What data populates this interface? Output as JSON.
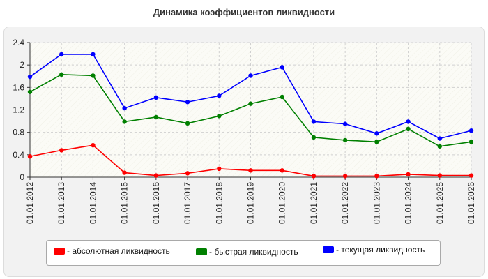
{
  "chart_data": {
    "type": "line",
    "title": "Динамика коэффициентов ликвидности",
    "xlabel": "",
    "ylabel": "",
    "categories": [
      "01.01.2012",
      "01.01.2013",
      "01.01.2014",
      "01.01.2015",
      "01.01.2016",
      "01.01.2017",
      "01.01.2018",
      "01.01.2019",
      "01.01.2020",
      "01.01.2021",
      "01.01.2022",
      "01.01.2023",
      "01.01.2024",
      "01.01.2025",
      "01.01.2026"
    ],
    "ylim": [
      0,
      2.4
    ],
    "yticks": [
      "0",
      "0.4",
      "0.8",
      "1.2",
      "1.6",
      "2",
      "2.4"
    ],
    "grid": true,
    "legend_position": "bottom",
    "series": [
      {
        "name": "- абсолютная ликвидность",
        "color": "#ff0000",
        "values": [
          0.37,
          0.48,
          0.57,
          0.08,
          0.03,
          0.07,
          0.15,
          0.12,
          0.12,
          0.02,
          0.02,
          0.02,
          0.05,
          0.03,
          0.03
        ]
      },
      {
        "name": "- быстрая ликвидность",
        "color": "#008000",
        "values": [
          1.52,
          1.83,
          1.81,
          0.99,
          1.07,
          0.96,
          1.09,
          1.31,
          1.43,
          0.71,
          0.66,
          0.63,
          0.86,
          0.55,
          0.63
        ]
      },
      {
        "name": "- текущая ликвидность",
        "color": "#0000ff",
        "values": [
          1.79,
          2.19,
          2.19,
          1.23,
          1.42,
          1.34,
          1.45,
          1.81,
          1.96,
          0.99,
          0.95,
          0.78,
          0.99,
          0.69,
          0.83
        ]
      }
    ]
  }
}
